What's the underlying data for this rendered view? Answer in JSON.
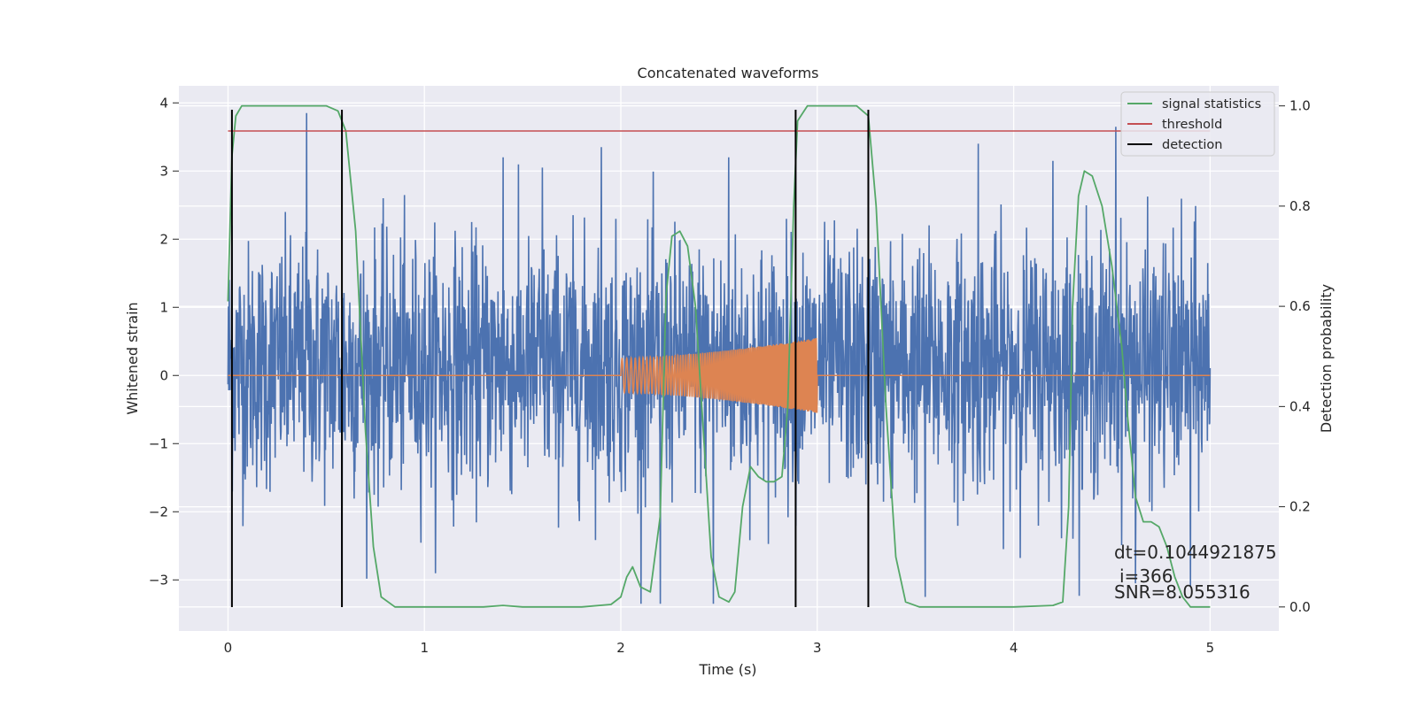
{
  "chart_data": {
    "type": "line",
    "title": "Concatenated waveforms",
    "xlabel": "Time (s)",
    "ylabel": "Whitened strain",
    "y2label": "Detection probability",
    "xlim": [
      -0.25,
      5.35
    ],
    "ylim": [
      -3.75,
      4.25
    ],
    "y2lim": [
      -0.048,
      1.04
    ],
    "xticks": [
      0,
      1,
      2,
      3,
      4,
      5
    ],
    "yticks": [
      -3,
      -2,
      -1,
      0,
      1,
      2,
      3,
      4
    ],
    "y2ticks": [
      0.0,
      0.2,
      0.4,
      0.6,
      0.8,
      1.0
    ],
    "grid": true,
    "legend_position": "top-right",
    "colors": {
      "background": "#eaeaf2",
      "grid": "#ffffff",
      "strain": "#4c72b0",
      "injection": "#dd8452",
      "signal_statistics": "#55a868",
      "threshold": "#c44e52",
      "detection": "#000000"
    },
    "legend": [
      {
        "name": "signal statistics",
        "color": "#55a868"
      },
      {
        "name": "threshold",
        "color": "#c44e52"
      },
      {
        "name": "detection",
        "color": "#000000"
      }
    ],
    "strain_noise": {
      "x_range": [
        0,
        5
      ],
      "typical_envelope": [
        -1.2,
        1.5
      ],
      "peak_samples": [
        {
          "x": 0.02,
          "y": 2.2
        },
        {
          "x": 0.4,
          "y": 3.9
        },
        {
          "x": 0.58,
          "y": -3.05
        },
        {
          "x": 1.4,
          "y": 3.2
        },
        {
          "x": 1.6,
          "y": 3.05
        },
        {
          "x": 1.9,
          "y": 3.35
        },
        {
          "x": 2.2,
          "y": -3.4
        },
        {
          "x": 2.47,
          "y": -3.4
        },
        {
          "x": 2.55,
          "y": 3.2
        },
        {
          "x": 3.55,
          "y": -3.25
        },
        {
          "x": 3.82,
          "y": 3.4
        },
        {
          "x": 4.2,
          "y": 3.15
        },
        {
          "x": 4.52,
          "y": 3.65
        },
        {
          "x": 4.62,
          "y": -3.05
        },
        {
          "x": 4.9,
          "y": -3.1
        }
      ]
    },
    "injection": {
      "start": 2.0,
      "end": 3.0,
      "amplitude_start": 0.25,
      "amplitude_end": 0.55
    },
    "signal_statistics": {
      "x": [
        0.0,
        0.02,
        0.04,
        0.07,
        0.1,
        0.3,
        0.5,
        0.56,
        0.6,
        0.65,
        0.7,
        0.74,
        0.78,
        0.85,
        1.0,
        1.3,
        1.4,
        1.5,
        1.8,
        1.95,
        2.0,
        2.03,
        2.06,
        2.1,
        2.15,
        2.2,
        2.23,
        2.26,
        2.3,
        2.34,
        2.38,
        2.42,
        2.46,
        2.5,
        2.55,
        2.58,
        2.62,
        2.66,
        2.7,
        2.74,
        2.78,
        2.82,
        2.85,
        2.88,
        2.9,
        2.95,
        3.2,
        3.26,
        3.3,
        3.35,
        3.4,
        3.45,
        3.52,
        3.6,
        3.8,
        4.0,
        4.2,
        4.25,
        4.28,
        4.3,
        4.33,
        4.36,
        4.4,
        4.45,
        4.5,
        4.55,
        4.58,
        4.62,
        4.66,
        4.7,
        4.74,
        4.78,
        4.82,
        4.86,
        4.9,
        4.95,
        5.0
      ],
      "y": [
        0.61,
        0.9,
        0.98,
        1.0,
        1.0,
        1.0,
        1.0,
        0.99,
        0.95,
        0.75,
        0.35,
        0.12,
        0.02,
        0.0,
        0.0,
        0.0,
        0.003,
        0.0,
        0.0,
        0.005,
        0.02,
        0.06,
        0.08,
        0.04,
        0.03,
        0.18,
        0.62,
        0.74,
        0.75,
        0.72,
        0.6,
        0.35,
        0.1,
        0.02,
        0.01,
        0.03,
        0.2,
        0.28,
        0.26,
        0.25,
        0.25,
        0.26,
        0.4,
        0.8,
        0.97,
        1.0,
        1.0,
        0.98,
        0.8,
        0.4,
        0.1,
        0.01,
        0.0,
        0.0,
        0.0,
        0.0,
        0.003,
        0.01,
        0.2,
        0.6,
        0.82,
        0.87,
        0.86,
        0.8,
        0.68,
        0.52,
        0.38,
        0.22,
        0.17,
        0.17,
        0.16,
        0.12,
        0.06,
        0.02,
        0.0,
        0.0,
        0.0
      ]
    },
    "threshold": 0.95,
    "detections": [
      0.02,
      0.58,
      2.89,
      3.26
    ],
    "detection_y_range": [
      -3.4,
      3.9
    ],
    "annotations": [
      "dt=0.1044921875",
      "i=366",
      "SNR=8.055316"
    ]
  }
}
